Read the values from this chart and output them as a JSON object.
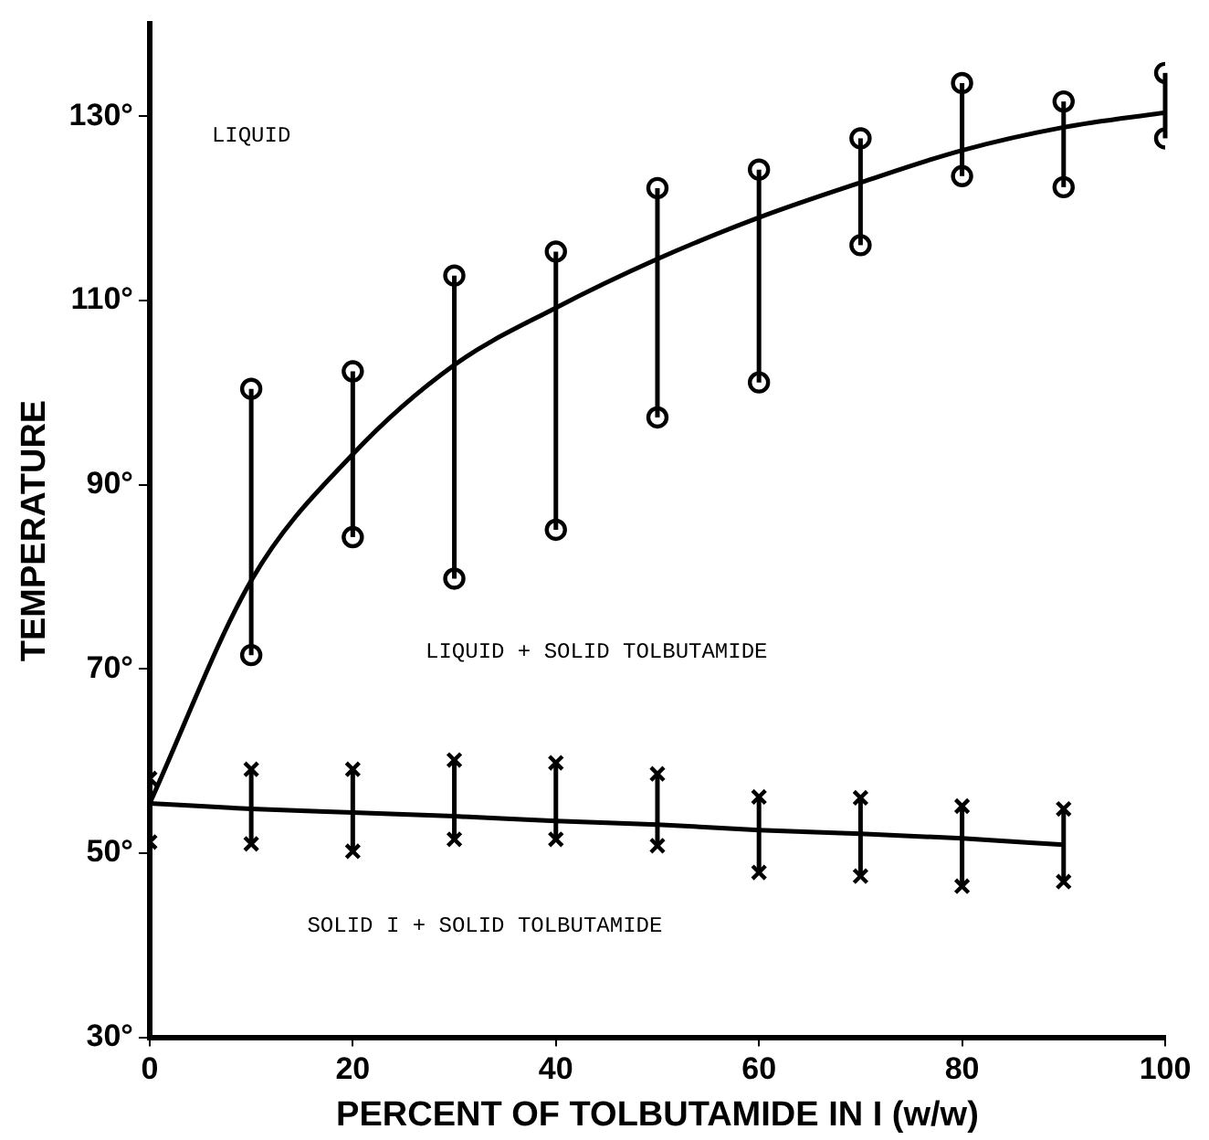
{
  "chart_data": {
    "type": "scatter",
    "xlabel": "PERCENT OF TOLBUTAMIDE IN I (w/w)",
    "ylabel": "TEMPERATURE",
    "xlim": [
      0,
      100
    ],
    "xticks": [
      0,
      20,
      40,
      60,
      80,
      100
    ],
    "ylim": [
      30,
      140
    ],
    "yticks": [
      {
        "value": 30,
        "label": "30°"
      },
      {
        "value": 50,
        "label": "50°"
      },
      {
        "value": 70,
        "label": "70°"
      },
      {
        "value": 90,
        "label": "90°"
      },
      {
        "value": 110,
        "label": "110°"
      },
      {
        "value": 130,
        "label": "130°"
      }
    ],
    "grid": false,
    "legend": false,
    "series": [
      {
        "type": "scatter",
        "marker": "circle",
        "color": "#000000",
        "x": [
          10,
          20,
          30,
          40,
          50,
          60,
          70,
          80,
          90,
          100
        ],
        "values": [
          100.4,
          102.3,
          112.7,
          115.3,
          122.2,
          124.2,
          127.6,
          133.6,
          131.6,
          134.7
        ],
        "errors": [
          [
            71.5,
            100.4
          ],
          [
            84.3,
            102.3
          ],
          [
            79.8,
            112.7
          ],
          [
            85.1,
            115.3
          ],
          [
            97.3,
            122.2
          ],
          [
            101.1,
            124.2
          ],
          [
            116,
            127.6
          ],
          [
            123.5,
            133.6
          ],
          [
            122.3,
            131.6
          ],
          [
            127.6,
            134.7
          ]
        ]
      },
      {
        "type": "scatter",
        "marker": "circle",
        "color": "#000000",
        "x": [
          10,
          20,
          30,
          40,
          50,
          60,
          70,
          80,
          90,
          100
        ],
        "values": [
          71.5,
          84.3,
          79.8,
          85.1,
          97.3,
          101.1,
          116,
          123.5,
          122.3,
          127.6
        ]
      },
      {
        "type": "line",
        "marker": "none",
        "color": "#000000",
        "x": [
          0,
          10,
          20,
          30,
          40,
          50,
          60,
          70,
          80,
          90,
          100
        ],
        "values": [
          55.4,
          79.6,
          93.3,
          103,
          109.2,
          114.5,
          119,
          122.8,
          126.3,
          128.8,
          130.4
        ]
      },
      {
        "type": "scatter",
        "marker": "cross",
        "color": "#000000",
        "x": [
          0,
          10,
          20,
          30,
          40,
          50,
          60,
          70,
          80,
          90
        ],
        "values": [
          58.1,
          59.1,
          59.1,
          60.1,
          59.8,
          58.6,
          56.1,
          56,
          55.1,
          54.8
        ],
        "errors": [
          [
            51.2,
            58.1
          ],
          [
            51,
            59.1
          ],
          [
            50.2,
            59.1
          ],
          [
            51.5,
            60.1
          ],
          [
            51.5,
            59.8
          ],
          [
            50.8,
            58.6
          ],
          [
            47.9,
            56.1
          ],
          [
            47.5,
            56
          ],
          [
            46.4,
            55.1
          ],
          [
            46.9,
            54.8
          ]
        ]
      },
      {
        "type": "scatter",
        "marker": "cross",
        "color": "#000000",
        "x": [
          0,
          10,
          20,
          30,
          40,
          50,
          60,
          70,
          80,
          90
        ],
        "values": [
          51.2,
          51,
          50.2,
          51.5,
          51.5,
          50.8,
          47.9,
          47.5,
          46.4,
          46.9
        ]
      },
      {
        "type": "line",
        "marker": "none",
        "color": "#000000",
        "x": [
          0,
          10,
          20,
          30,
          40,
          50,
          60,
          70,
          80,
          90
        ],
        "values": [
          55.4,
          54.8,
          54.4,
          54,
          53.5,
          53.1,
          52.5,
          52.1,
          51.6,
          50.9
        ]
      }
    ],
    "annotations": [
      "LIQUID",
      "LIQUID + SOLID TOLBUTAMIDE",
      "SOLID I + SOLID TOLBUTAMIDE"
    ]
  }
}
